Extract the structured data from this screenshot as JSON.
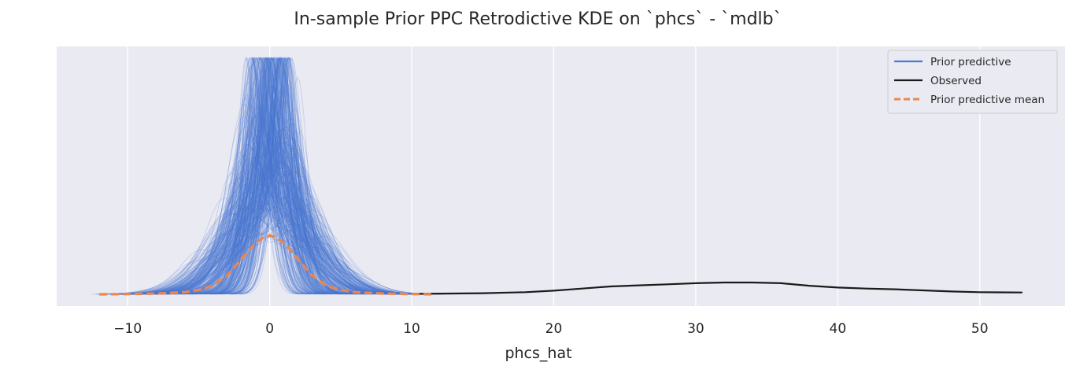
{
  "chart_data": {
    "type": "line",
    "title": "In-sample Prior PPC Retrodictive KDE on `phcs` - `mdlb`",
    "xlabel": "phcs_hat",
    "ylabel": "",
    "xlim": [
      -15,
      56
    ],
    "ylim": [
      0,
      0.335
    ],
    "x_ticks": [
      -10,
      0,
      10,
      20,
      30,
      40,
      50
    ],
    "x_tick_labels": [
      "−10",
      "0",
      "10",
      "20",
      "30",
      "40",
      "50"
    ],
    "y_ticks_visible": false,
    "grid": "x-major, white",
    "legend": {
      "placement": "top-right",
      "entries": [
        {
          "label": "Prior predictive",
          "color": "#4878d0",
          "style": "solid"
        },
        {
          "label": "Observed",
          "color": "#1a1a1a",
          "style": "solid"
        },
        {
          "label": "Prior predictive mean",
          "color": "#ee854a",
          "style": "dashed"
        }
      ]
    },
    "series": [
      {
        "name": "Prior predictive mean",
        "color": "#ee854a",
        "style": "dashed",
        "x": [
          -12,
          -10,
          -8,
          -6,
          -5,
          -4,
          -3,
          -2,
          -1.5,
          -1,
          -0.5,
          0,
          0.5,
          1,
          1.5,
          2,
          3,
          4,
          5,
          6,
          8,
          10,
          11.5
        ],
        "y": [
          0,
          0.0003,
          0.001,
          0.003,
          0.006,
          0.012,
          0.026,
          0.049,
          0.061,
          0.071,
          0.079,
          0.082,
          0.079,
          0.071,
          0.061,
          0.049,
          0.026,
          0.012,
          0.006,
          0.003,
          0.001,
          0.0003,
          0
        ]
      },
      {
        "name": "Observed",
        "color": "#1a1a1a",
        "style": "solid",
        "x": [
          10,
          15,
          18,
          20,
          22,
          24,
          26,
          28,
          30,
          32,
          34,
          36,
          38,
          40,
          42,
          44,
          46,
          48,
          50,
          53
        ],
        "y": [
          0.0005,
          0.0015,
          0.003,
          0.005,
          0.008,
          0.011,
          0.0125,
          0.014,
          0.0155,
          0.0165,
          0.0165,
          0.0155,
          0.012,
          0.0095,
          0.008,
          0.007,
          0.0055,
          0.004,
          0.003,
          0.0025
        ]
      },
      {
        "name": "Prior predictive",
        "color": "#4878d0",
        "style": "solid",
        "draws": 400,
        "draw_mean": 0,
        "draw_sd_range": [
          0.8,
          3.2
        ],
        "draw_mu_range": [
          -1.2,
          1.2
        ],
        "draw_peak_max": 0.33
      }
    ]
  }
}
